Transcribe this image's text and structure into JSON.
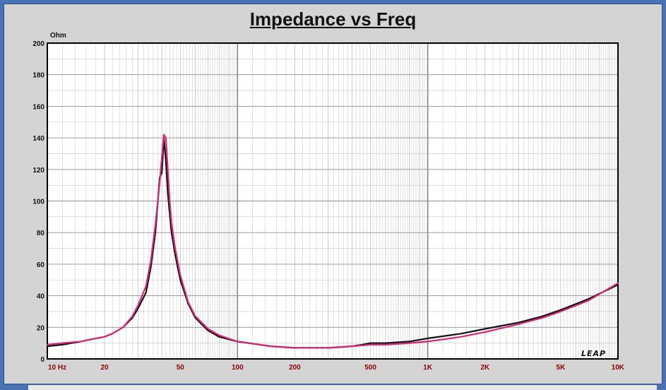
{
  "chart_data": {
    "type": "line",
    "title": "Impedance vs Freq",
    "ylabel": "Ohm",
    "xlabel": "",
    "xscale": "log",
    "xlim": [
      10,
      10000
    ],
    "ylim": [
      0,
      200
    ],
    "grid": true,
    "yticks": [
      0,
      20,
      40,
      60,
      80,
      100,
      120,
      140,
      160,
      180,
      200
    ],
    "ytick_labels": [
      "0",
      "20",
      "40",
      "60",
      "80",
      "100",
      "120",
      "140",
      "160",
      "180",
      "200"
    ],
    "xticks": [
      10,
      20,
      50,
      100,
      200,
      500,
      1000,
      2000,
      5000,
      10000
    ],
    "xtick_labels": [
      "10  Hz",
      "20",
      "50",
      "100",
      "200",
      "500",
      "1K",
      "2K",
      "5K",
      "10K"
    ],
    "colors": {
      "measured": "#111111",
      "model": "#d4287a",
      "tick_label_x": "#8b0000",
      "grid": "#9e9e9e",
      "plot_bg": "#ffffff",
      "frame_bg": "#d4d4d4",
      "border": "#4a73b5"
    },
    "series": [
      {
        "x": [
          10,
          12,
          15,
          18,
          20,
          22,
          25,
          28,
          30,
          33,
          35,
          37,
          39,
          40,
          41,
          42,
          43,
          44,
          45,
          47,
          50,
          55,
          60,
          70,
          80,
          100,
          150,
          200,
          300,
          400,
          450,
          500,
          600,
          800,
          1000,
          1500,
          2000,
          3000,
          4000,
          5000,
          7000,
          10000
        ],
        "y": [
          8,
          9,
          11,
          13,
          14,
          16,
          20,
          26,
          32,
          42,
          58,
          80,
          115,
          118,
          140,
          125,
          105,
          92,
          80,
          66,
          50,
          35,
          26,
          18,
          14,
          11,
          8,
          7,
          7,
          8,
          9,
          10,
          10,
          11,
          13,
          16,
          19,
          23,
          27,
          31,
          38,
          47
        ]
      },
      {
        "x": [
          10,
          12,
          15,
          18,
          20,
          22,
          25,
          28,
          30,
          33,
          35,
          37,
          39,
          40,
          41,
          42,
          43,
          44,
          45,
          47,
          50,
          55,
          60,
          70,
          80,
          100,
          150,
          200,
          300,
          400,
          500,
          600,
          800,
          1000,
          1500,
          2000,
          3000,
          4000,
          5000,
          7000,
          10000
        ],
        "y": [
          9,
          10,
          11,
          13,
          14,
          16,
          20,
          27,
          34,
          46,
          62,
          85,
          112,
          128,
          142,
          140,
          120,
          100,
          86,
          70,
          53,
          36,
          27,
          19,
          15,
          11,
          8,
          7,
          7,
          8,
          9,
          9,
          10,
          11,
          14,
          17,
          22,
          26,
          30,
          37,
          48
        ]
      }
    ]
  }
}
